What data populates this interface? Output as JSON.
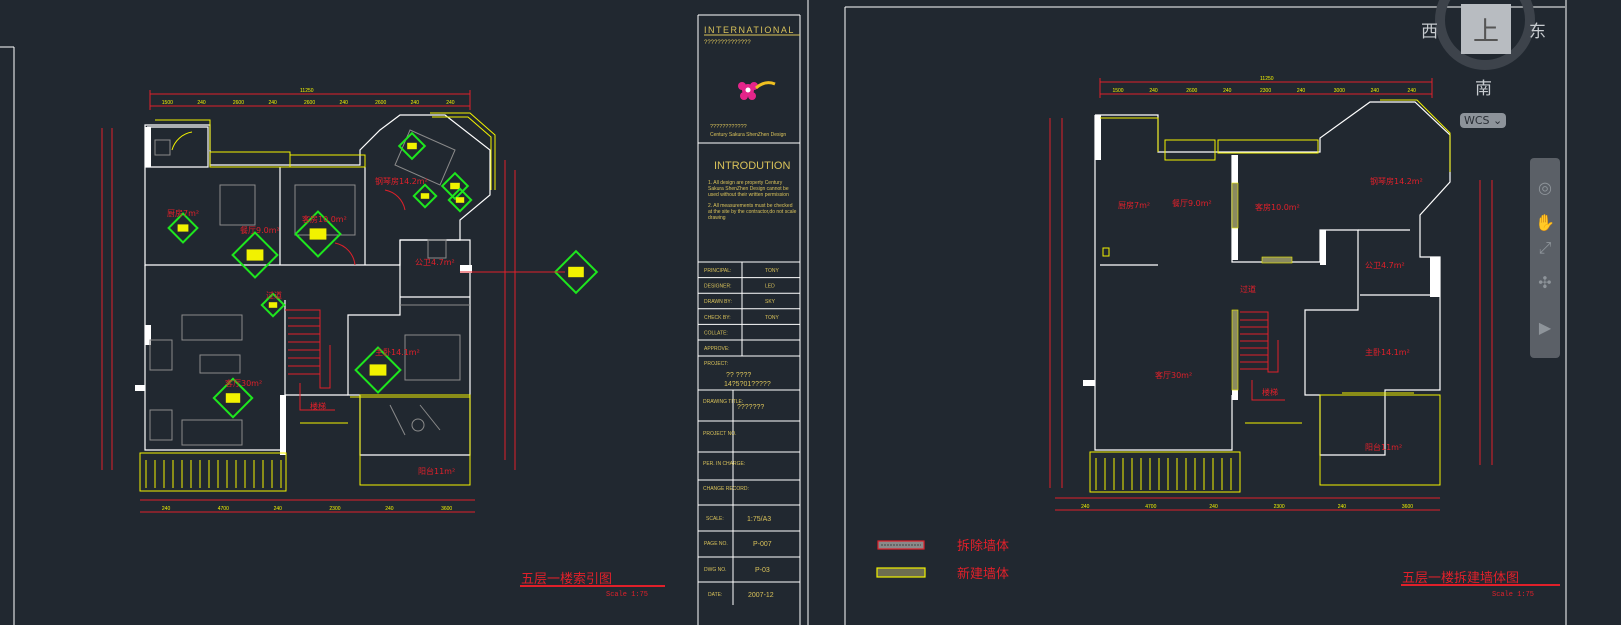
{
  "viewcube": {
    "top_face": "上",
    "west": "西",
    "east": "东",
    "south": "南",
    "coord_system": "WCS"
  },
  "navbar": {
    "icons": [
      "steering-wheel-icon",
      "pan-hand-icon",
      "zoom-extents-icon",
      "orbit-icon",
      "showmotion-icon"
    ]
  },
  "title_block": {
    "company": "INTERNATIONAL",
    "company_sub": "??????????????",
    "logo_cn": "????????????",
    "logo_en": "Century Sakura ShenZhen Design",
    "intro_title": "INTRODUTION",
    "intro_1": "1.  All design are property Century Sakura ShenZhen Design cannot be used without their written permission",
    "intro_2": "2.  All measurements must be checked at the site by the contractor,do not scale drawing",
    "rows": [
      {
        "label": "PRINCIPAL:",
        "value": "TONY"
      },
      {
        "label": "DESIGNER:",
        "value": "LED"
      },
      {
        "label": "DRAWN BY:",
        "value": "SKY"
      },
      {
        "label": "CHECK BY:",
        "value": "TONY"
      },
      {
        "label": "COLLATE:",
        "value": ""
      },
      {
        "label": "APPROVE:",
        "value": ""
      }
    ],
    "project_label": "PROJECT:",
    "project_value_1": "??  ????",
    "project_value_2": "14?5?01?????",
    "drawing_title_label": "DRAWING TITLE:",
    "drawing_title_value": "???????",
    "project_no_label": "PROJECT NO.",
    "per_in_charge_label": "PER. IN CHARGE:",
    "change_record_label": "CHANGE RECORD:",
    "scale_label": "SCALE:",
    "scale_value": "1:75/A3",
    "page_no_label": "PAGE NO.",
    "page_no_value": "P-007",
    "dwg_no_label": "DWG NO.",
    "dwg_no_value": "P-03",
    "date_label": "DATE:",
    "date_value": "2007-12"
  },
  "left_plan": {
    "title": "五层一楼索引图",
    "scale": "Scale  1:75",
    "rooms": {
      "kitchen": "厨房7m²",
      "dining": "餐厅9.0m²",
      "guest": "客房10.0m²",
      "piano": "钢琴房14.2m²",
      "bath": "公卫4.7m²",
      "corridor": "过道",
      "living": "客厅30m²",
      "master": "主卧14.1m²",
      "stairs": "楼梯",
      "balcony": "阳台11m²"
    },
    "dims_top": [
      "1500",
      "240",
      "2600",
      "240",
      "2600",
      "240",
      "2600",
      "240",
      "240"
    ],
    "dims_bottom": [
      "240",
      "4700",
      "240",
      "2300",
      "240",
      "3600"
    ],
    "dim_total": "11250"
  },
  "right_plan": {
    "title": "五层一楼拆建墙体图",
    "scale": "Scale  1:75",
    "rooms": {
      "kitchen": "厨房7m²",
      "dining": "餐厅9.0m²",
      "guest": "客房10.0m²",
      "piano": "钢琴房14.2m²",
      "bath": "公卫4.7m²",
      "corridor": "过道",
      "living": "客厅30m²",
      "master": "主卧14.1m²",
      "stairs": "楼梯",
      "balcony": "阳台11m²"
    },
    "dims_top": [
      "1500",
      "240",
      "2600",
      "240",
      "2300",
      "240",
      "3000",
      "240",
      "240"
    ],
    "dims_bottom": [
      "240",
      "4700",
      "240",
      "2300",
      "240",
      "3600"
    ],
    "dim_total": "11250"
  },
  "legend": {
    "demolish_wall": "拆除墙体",
    "new_wall": "新建墙体"
  },
  "colors": {
    "background": "#212830",
    "wall": "#ffffff",
    "annotation": "#e0202a",
    "window": "#f2f200",
    "index_symbol": "#1ee61e"
  }
}
